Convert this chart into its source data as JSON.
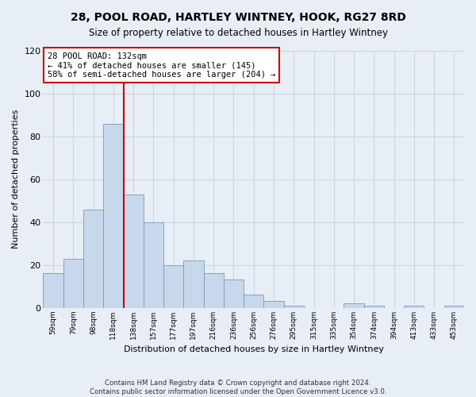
{
  "title": "28, POOL ROAD, HARTLEY WINTNEY, HOOK, RG27 8RD",
  "subtitle": "Size of property relative to detached houses in Hartley Wintney",
  "xlabel": "Distribution of detached houses by size in Hartley Wintney",
  "ylabel": "Number of detached properties",
  "bar_labels": [
    "59sqm",
    "79sqm",
    "98sqm",
    "118sqm",
    "138sqm",
    "157sqm",
    "177sqm",
    "197sqm",
    "216sqm",
    "236sqm",
    "256sqm",
    "276sqm",
    "295sqm",
    "315sqm",
    "335sqm",
    "354sqm",
    "374sqm",
    "394sqm",
    "413sqm",
    "433sqm",
    "453sqm"
  ],
  "bar_values": [
    16,
    23,
    46,
    86,
    53,
    40,
    20,
    22,
    16,
    13,
    6,
    3,
    1,
    0,
    0,
    2,
    1,
    0,
    1,
    0,
    1
  ],
  "bar_color": "#c8d8ec",
  "bar_edge_color": "#7799bb",
  "vline_color": "#cc0000",
  "vline_pos": 3.5,
  "ylim": [
    0,
    120
  ],
  "yticks": [
    0,
    20,
    40,
    60,
    80,
    100,
    120
  ],
  "annotation_title": "28 POOL ROAD: 132sqm",
  "annotation_line1": "← 41% of detached houses are smaller (145)",
  "annotation_line2": "58% of semi-detached houses are larger (204) →",
  "annotation_box_facecolor": "#ffffff",
  "annotation_box_edgecolor": "#cc0000",
  "footer_line1": "Contains HM Land Registry data © Crown copyright and database right 2024.",
  "footer_line2": "Contains public sector information licensed under the Open Government Licence v3.0.",
  "bg_color": "#e8eef5",
  "grid_color": "#c8d4e0"
}
